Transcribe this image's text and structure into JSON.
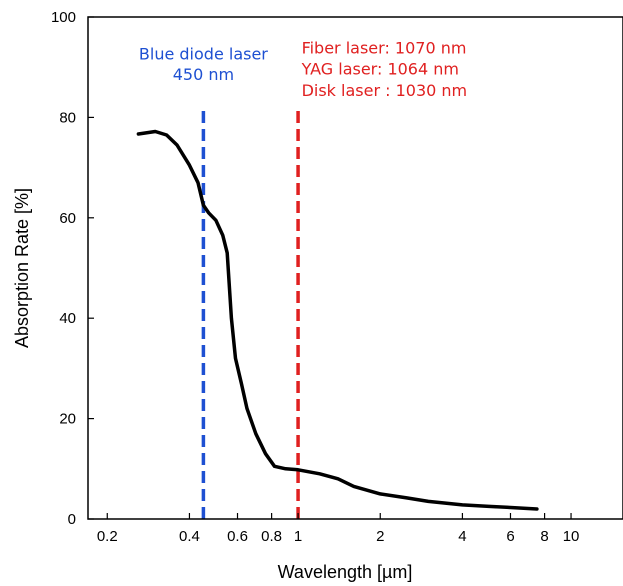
{
  "chart_data": {
    "type": "line",
    "title": "",
    "xlabel": "Wavelength [µm]",
    "ylabel": "Absorption Rate [%]",
    "x_scale": "log",
    "xlim": [
      0.17,
      15.5
    ],
    "ylim": [
      0,
      100
    ],
    "x_ticks": [
      {
        "value": 0.2,
        "label": "0.2"
      },
      {
        "value": 0.4,
        "label": "0.4"
      },
      {
        "value": 0.6,
        "label": "0.6"
      },
      {
        "value": 0.8,
        "label": "0.8"
      },
      {
        "value": 1,
        "label": "1"
      },
      {
        "value": 2,
        "label": "2"
      },
      {
        "value": 4,
        "label": "4"
      },
      {
        "value": 6,
        "label": "6"
      },
      {
        "value": 8,
        "label": "8"
      },
      {
        "value": 10,
        "label": "10"
      }
    ],
    "y_ticks": [
      {
        "value": 0,
        "label": "0"
      },
      {
        "value": 20,
        "label": "20"
      },
      {
        "value": 40,
        "label": "40"
      },
      {
        "value": 60,
        "label": "60"
      },
      {
        "value": 80,
        "label": "80"
      },
      {
        "value": 100,
        "label": "100"
      }
    ],
    "grid": false,
    "series": [
      {
        "color": "#000000",
        "points": [
          {
            "x": 0.26,
            "y": 76.7
          },
          {
            "x": 0.3,
            "y": 77.2
          },
          {
            "x": 0.33,
            "y": 76.5
          },
          {
            "x": 0.36,
            "y": 74.5
          },
          {
            "x": 0.4,
            "y": 70.5
          },
          {
            "x": 0.43,
            "y": 67.0
          },
          {
            "x": 0.45,
            "y": 62.5
          },
          {
            "x": 0.47,
            "y": 61.0
          },
          {
            "x": 0.5,
            "y": 59.5
          },
          {
            "x": 0.53,
            "y": 56.5
          },
          {
            "x": 0.55,
            "y": 53.0
          },
          {
            "x": 0.57,
            "y": 40.0
          },
          {
            "x": 0.59,
            "y": 32.0
          },
          {
            "x": 0.62,
            "y": 27.0
          },
          {
            "x": 0.65,
            "y": 22.0
          },
          {
            "x": 0.7,
            "y": 17.0
          },
          {
            "x": 0.76,
            "y": 13.0
          },
          {
            "x": 0.82,
            "y": 10.5
          },
          {
            "x": 0.9,
            "y": 10.0
          },
          {
            "x": 1.0,
            "y": 9.8
          },
          {
            "x": 1.2,
            "y": 9.0
          },
          {
            "x": 1.4,
            "y": 8.0
          },
          {
            "x": 1.6,
            "y": 6.5
          },
          {
            "x": 2.0,
            "y": 5.0
          },
          {
            "x": 2.5,
            "y": 4.2
          },
          {
            "x": 3.0,
            "y": 3.5
          },
          {
            "x": 4.0,
            "y": 2.8
          },
          {
            "x": 5.0,
            "y": 2.5
          },
          {
            "x": 6.0,
            "y": 2.3
          },
          {
            "x": 7.5,
            "y": 2.0
          }
        ]
      }
    ],
    "reference_lines": [
      {
        "x": 0.45,
        "color": "#1e50d2",
        "style": "dashed",
        "y_top": 82
      },
      {
        "x": 1.0,
        "color": "#e02020",
        "style": "dashed",
        "y_top": 82
      }
    ],
    "annotations": [
      {
        "id": "blue-line1",
        "text": "Blue diode laser",
        "x": 0.45,
        "y": 91.5,
        "anchor": "middle",
        "color": "#1e50d2"
      },
      {
        "id": "blue-line2",
        "text": "450 nm",
        "x": 0.45,
        "y": 87.5,
        "anchor": "middle",
        "color": "#1e50d2"
      },
      {
        "id": "red-line1",
        "text": "Fiber laser: 1070 nm",
        "x": 1.03,
        "y": 92.7,
        "anchor": "start",
        "color": "#e02020"
      },
      {
        "id": "red-line2",
        "text": "YAG laser: 1064 nm",
        "x": 1.03,
        "y": 88.5,
        "anchor": "start",
        "color": "#e02020"
      },
      {
        "id": "red-line3",
        "text": "Disk laser : 1030 nm",
        "x": 1.03,
        "y": 84.3,
        "anchor": "start",
        "color": "#e02020"
      }
    ]
  }
}
